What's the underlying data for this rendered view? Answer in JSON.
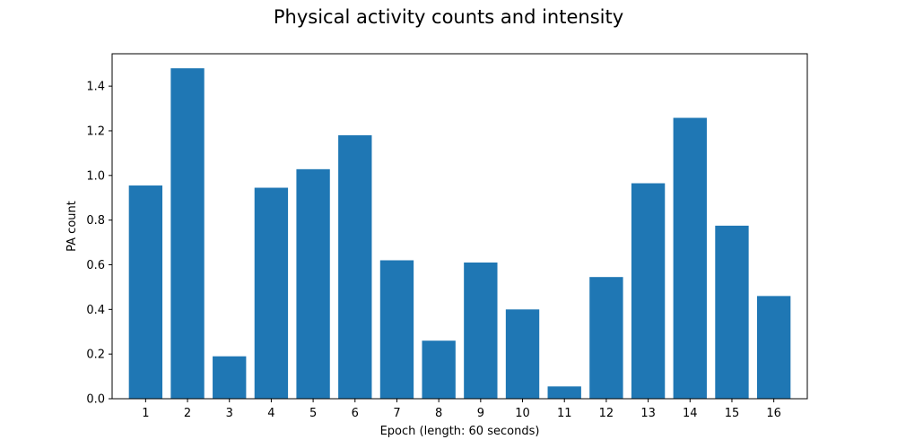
{
  "chart_data": {
    "type": "bar",
    "title": "Physical activity counts and intensity",
    "xlabel": "Epoch (length: 60 seconds)",
    "ylabel": "PA count",
    "categories": [
      "1",
      "2",
      "3",
      "4",
      "5",
      "6",
      "7",
      "8",
      "9",
      "10",
      "11",
      "12",
      "13",
      "14",
      "15",
      "16"
    ],
    "values": [
      0.955,
      1.48,
      0.19,
      0.945,
      1.028,
      1.18,
      0.62,
      0.26,
      0.61,
      0.4,
      0.055,
      0.545,
      0.965,
      1.258,
      0.775,
      0.46
    ],
    "ylim": [
      0,
      1.545
    ],
    "yticks": [
      0.0,
      0.2,
      0.4,
      0.6,
      0.8,
      1.0,
      1.2,
      1.4
    ],
    "ytick_labels": [
      "0.0",
      "0.2",
      "0.4",
      "0.6",
      "0.8",
      "1.0",
      "1.2",
      "1.4"
    ],
    "bar_color": "#1f77b4",
    "grid": false,
    "legend": "none"
  }
}
